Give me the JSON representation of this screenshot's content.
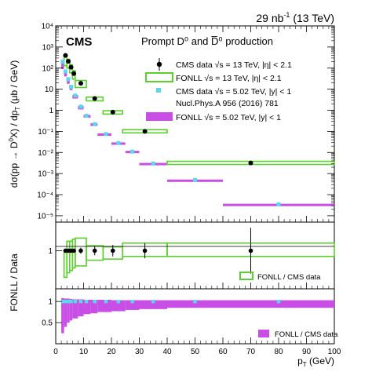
{
  "header": {
    "lumi": "29 nb⁻¹ (13 TeV)",
    "lumi_text": "29 nb",
    "lumi_sup": "-1",
    "lumi_tail": " (13 TeV)",
    "experiment": "CMS",
    "title": "Prompt D⁰ and D̅⁰ production"
  },
  "chart_data": [
    {
      "panel": "cross-section",
      "type": "scatter",
      "ylabel": "dσ(pp → D⁰X) / dp_T (μb / GeV)",
      "ylabel_plain": "dσ(pp → D",
      "ylabel_tail": "X) / dp",
      "ylabel_unit": " (μb / GeV)",
      "xlim": [
        0,
        100
      ],
      "ylim": [
        5e-06,
        10000
      ],
      "yscale": "log",
      "yticks": [
        "10⁻⁵",
        "10⁻⁴",
        "10⁻³",
        "10⁻²",
        "10⁻¹",
        "1",
        "10",
        "10²",
        "10³",
        "10⁴"
      ],
      "series": [
        {
          "name": "CMS data √s = 13 TeV, |η| < 2.1",
          "style": "black-point",
          "color": "#000000",
          "points": [
            {
              "x": 3.5,
              "y": 400
            },
            {
              "x": 4.5,
              "y": 210
            },
            {
              "x": 5.5,
              "y": 110
            },
            {
              "x": 6.5,
              "y": 55
            },
            {
              "x": 9,
              "y": 19
            },
            {
              "x": 14,
              "y": 3.6
            },
            {
              "x": 20.5,
              "y": 0.82
            },
            {
              "x": 32,
              "y": 0.1
            },
            {
              "x": 70,
              "y": 0.0032
            }
          ]
        },
        {
          "name": "FONLL √s = 13 TeV, |η| < 2.1",
          "style": "green-box",
          "color": "#5ad02c",
          "boxes": [
            {
              "x0": 3,
              "x1": 4,
              "ylo": 130,
              "yhi": 400
            },
            {
              "x0": 4,
              "x1": 5,
              "ylo": 100,
              "yhi": 260
            },
            {
              "x0": 5,
              "x1": 6,
              "ylo": 60,
              "yhi": 145
            },
            {
              "x0": 6,
              "x1": 7,
              "ylo": 30,
              "yhi": 75
            },
            {
              "x0": 7,
              "x1": 11,
              "ylo": 12,
              "yhi": 26
            },
            {
              "x0": 11,
              "x1": 17,
              "ylo": 2.8,
              "yhi": 4.2
            },
            {
              "x0": 17,
              "x1": 24,
              "ylo": 0.66,
              "yhi": 0.95
            },
            {
              "x0": 24,
              "x1": 40,
              "ylo": 0.085,
              "yhi": 0.12
            },
            {
              "x0": 40,
              "x1": 100,
              "ylo": 0.0027,
              "yhi": 0.0038
            }
          ]
        },
        {
          "name": "CMS data √s = 5.02 TeV, |y| < 1",
          "note": "Nucl.Phys.A 956 (2016) 781",
          "style": "cyan-square",
          "color": "#5ad8ec",
          "points": [
            {
              "x": 2.5,
              "y": 200
            },
            {
              "x": 3.5,
              "y": 70
            },
            {
              "x": 4.5,
              "y": 30
            },
            {
              "x": 5.5,
              "y": 13
            },
            {
              "x": 7,
              "y": 5
            },
            {
              "x": 9,
              "y": 1.5
            },
            {
              "x": 11,
              "y": 0.55
            },
            {
              "x": 14,
              "y": 0.22
            },
            {
              "x": 18,
              "y": 0.075
            },
            {
              "x": 22.5,
              "y": 0.028
            },
            {
              "x": 27.5,
              "y": 0.011
            },
            {
              "x": 35,
              "y": 0.003
            },
            {
              "x": 50,
              "y": 0.0005
            },
            {
              "x": 80,
              "y": 3.5e-05
            }
          ]
        },
        {
          "name": "FONLL √s = 5.02 TeV, |y| < 1",
          "style": "purple-band",
          "color": "#c84ee6",
          "bands": [
            {
              "x0": 2,
              "x1": 3,
              "ylo": 90,
              "yhi": 210
            },
            {
              "x0": 3,
              "x1": 4,
              "ylo": 40,
              "yhi": 75
            },
            {
              "x0": 4,
              "x1": 5,
              "ylo": 18,
              "yhi": 32
            },
            {
              "x0": 5,
              "x1": 6,
              "ylo": 9,
              "yhi": 14
            },
            {
              "x0": 6,
              "x1": 8,
              "ylo": 3.6,
              "yhi": 5.3
            },
            {
              "x0": 8,
              "x1": 10,
              "ylo": 1.1,
              "yhi": 1.6
            },
            {
              "x0": 10,
              "x1": 12.5,
              "ylo": 0.45,
              "yhi": 0.6
            },
            {
              "x0": 12.5,
              "x1": 15,
              "ylo": 0.18,
              "yhi": 0.24
            },
            {
              "x0": 15,
              "x1": 20,
              "ylo": 0.065,
              "yhi": 0.08
            },
            {
              "x0": 20,
              "x1": 25,
              "ylo": 0.024,
              "yhi": 0.03
            },
            {
              "x0": 25,
              "x1": 30,
              "ylo": 0.0095,
              "yhi": 0.012
            },
            {
              "x0": 30,
              "x1": 40,
              "ylo": 0.0026,
              "yhi": 0.0032
            },
            {
              "x0": 40,
              "x1": 60,
              "ylo": 0.00042,
              "yhi": 0.00052
            },
            {
              "x0": 60,
              "x1": 100,
              "ylo": 3e-05,
              "yhi": 3.7e-05
            }
          ]
        }
      ]
    },
    {
      "panel": "ratio-13TeV",
      "type": "scatter",
      "xlim": [
        0,
        100
      ],
      "ylim": [
        0,
        1.75
      ],
      "yticks": [
        1
      ],
      "legend": "FONLL / CMS data",
      "legend_placement": "bottom-right",
      "data_points": [
        {
          "x": 3.5,
          "y": 1,
          "err": 0.05
        },
        {
          "x": 4.5,
          "y": 1,
          "err": 0.05
        },
        {
          "x": 5.5,
          "y": 1,
          "err": 0.05
        },
        {
          "x": 6.5,
          "y": 1,
          "err": 0.05
        },
        {
          "x": 9,
          "y": 1,
          "err": 0.08
        },
        {
          "x": 14,
          "y": 1,
          "err": 0.12
        },
        {
          "x": 20.5,
          "y": 1,
          "err": 0.15
        },
        {
          "x": 32,
          "y": 1,
          "err": 0.2
        },
        {
          "x": 70,
          "y": 1,
          "err": 0.6
        }
      ],
      "boxes": [
        {
          "x0": 3,
          "x1": 4,
          "ylo": 0.3,
          "yhi": 1.0
        },
        {
          "x0": 4,
          "x1": 5,
          "ylo": 0.42,
          "yhi": 1.25
        },
        {
          "x0": 5,
          "x1": 6,
          "ylo": 0.48,
          "yhi": 1.25
        },
        {
          "x0": 6,
          "x1": 7,
          "ylo": 0.55,
          "yhi": 1.3
        },
        {
          "x0": 7,
          "x1": 11,
          "ylo": 0.6,
          "yhi": 1.33
        },
        {
          "x0": 11,
          "x1": 17,
          "ylo": 0.75,
          "yhi": 1.13
        },
        {
          "x0": 17,
          "x1": 24,
          "ylo": 0.78,
          "yhi": 1.1
        },
        {
          "x0": 24,
          "x1": 40,
          "ylo": 0.85,
          "yhi": 1.2
        },
        {
          "x0": 40,
          "x1": 100,
          "ylo": 0.85,
          "yhi": 1.2
        }
      ]
    },
    {
      "panel": "ratio-5TeV",
      "type": "scatter",
      "xlabel": "p_T (GeV)",
      "xlabel_plain": "p",
      "xlabel_unit": " (GeV)",
      "xlim": [
        0,
        100
      ],
      "xticks": [
        0,
        10,
        20,
        30,
        40,
        50,
        60,
        70,
        80,
        90,
        100
      ],
      "ylim": [
        0,
        1.3
      ],
      "yticks": [
        0.5,
        1
      ],
      "legend": "FONLL / CMS data",
      "legend_placement": "bottom-right",
      "data_points": [
        {
          "x": 2.5,
          "y": 1
        },
        {
          "x": 3.5,
          "y": 1
        },
        {
          "x": 4.5,
          "y": 1
        },
        {
          "x": 5.5,
          "y": 1
        },
        {
          "x": 7,
          "y": 1
        },
        {
          "x": 9,
          "y": 1
        },
        {
          "x": 11,
          "y": 1
        },
        {
          "x": 14,
          "y": 1
        },
        {
          "x": 18,
          "y": 1
        },
        {
          "x": 22.5,
          "y": 1
        },
        {
          "x": 27.5,
          "y": 1
        },
        {
          "x": 35,
          "y": 1
        },
        {
          "x": 50,
          "y": 1
        },
        {
          "x": 80,
          "y": 1
        }
      ],
      "bands": [
        {
          "x0": 2,
          "x1": 3,
          "ylo": 0.25,
          "yhi": 1.08
        },
        {
          "x0": 3,
          "x1": 4,
          "ylo": 0.4,
          "yhi": 1.07
        },
        {
          "x0": 4,
          "x1": 5,
          "ylo": 0.5,
          "yhi": 1.07
        },
        {
          "x0": 5,
          "x1": 6,
          "ylo": 0.55,
          "yhi": 1.06
        },
        {
          "x0": 6,
          "x1": 8,
          "ylo": 0.6,
          "yhi": 1.05
        },
        {
          "x0": 8,
          "x1": 10,
          "ylo": 0.65,
          "yhi": 1.05
        },
        {
          "x0": 10,
          "x1": 12.5,
          "ylo": 0.7,
          "yhi": 1.04
        },
        {
          "x0": 12.5,
          "x1": 15,
          "ylo": 0.72,
          "yhi": 1.04
        },
        {
          "x0": 15,
          "x1": 20,
          "ylo": 0.75,
          "yhi": 1.04
        },
        {
          "x0": 20,
          "x1": 25,
          "ylo": 0.77,
          "yhi": 1.03
        },
        {
          "x0": 25,
          "x1": 30,
          "ylo": 0.8,
          "yhi": 1.03
        },
        {
          "x0": 30,
          "x1": 40,
          "ylo": 0.82,
          "yhi": 1.03
        },
        {
          "x0": 40,
          "x1": 60,
          "ylo": 0.85,
          "yhi": 1.03
        },
        {
          "x0": 60,
          "x1": 100,
          "ylo": 0.85,
          "yhi": 1.03
        }
      ]
    }
  ],
  "ratio_ylabel": "FONLL / Data"
}
